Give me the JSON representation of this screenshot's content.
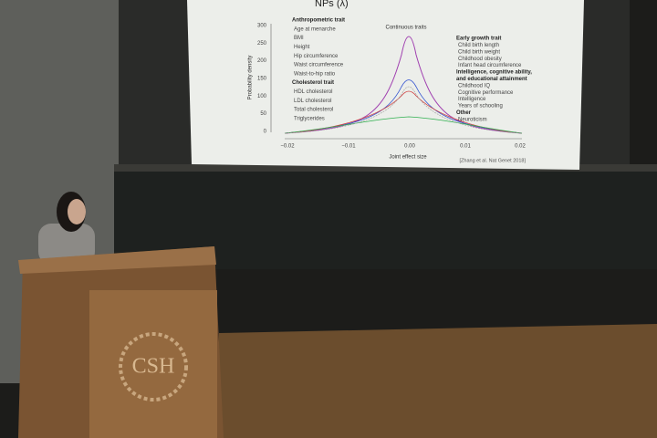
{
  "slide": {
    "title": "NPs (λ)",
    "subtitle": "Continuous traits",
    "y_axis_label": "Probability density",
    "x_axis_label": "Joint effect size",
    "y_ticks": [
      "300",
      "250",
      "200",
      "150",
      "100",
      "50",
      "0"
    ],
    "x_ticks": [
      "−0.02",
      "−0.01",
      "0.00",
      "0.01",
      "0.02"
    ],
    "citation": "[Zhang et al. Nat Genet 2018]",
    "legend_left": [
      {
        "heading": [
          "Anthropometric trait"
        ],
        "items": [
          "Age at menarche",
          "BMI",
          "Height",
          "Hip circumference",
          "Waist circumference",
          "Waist-to-hip ratio"
        ]
      },
      {
        "heading": [
          "Cholesterol trait"
        ],
        "items": [
          "HDL cholesterol",
          "LDL cholesterol",
          "Total cholesterol",
          "Triglycerides"
        ]
      }
    ],
    "legend_right": [
      {
        "heading": [
          "Early growth trait"
        ],
        "items": [
          "Child birth length",
          "Child birth weight",
          "Childhood obesity",
          "Infant head circumference"
        ]
      },
      {
        "heading": [
          "Intelligence, cognitive ability,",
          "and educational attainment"
        ],
        "items": [
          "Childhood IQ",
          "Cognitive performance",
          "Intelligence",
          "Years of schooling"
        ]
      },
      {
        "heading": [
          "Other"
        ],
        "items": [
          "Neuroticism"
        ]
      }
    ]
  },
  "podium": {
    "logo": "CSH"
  }
}
